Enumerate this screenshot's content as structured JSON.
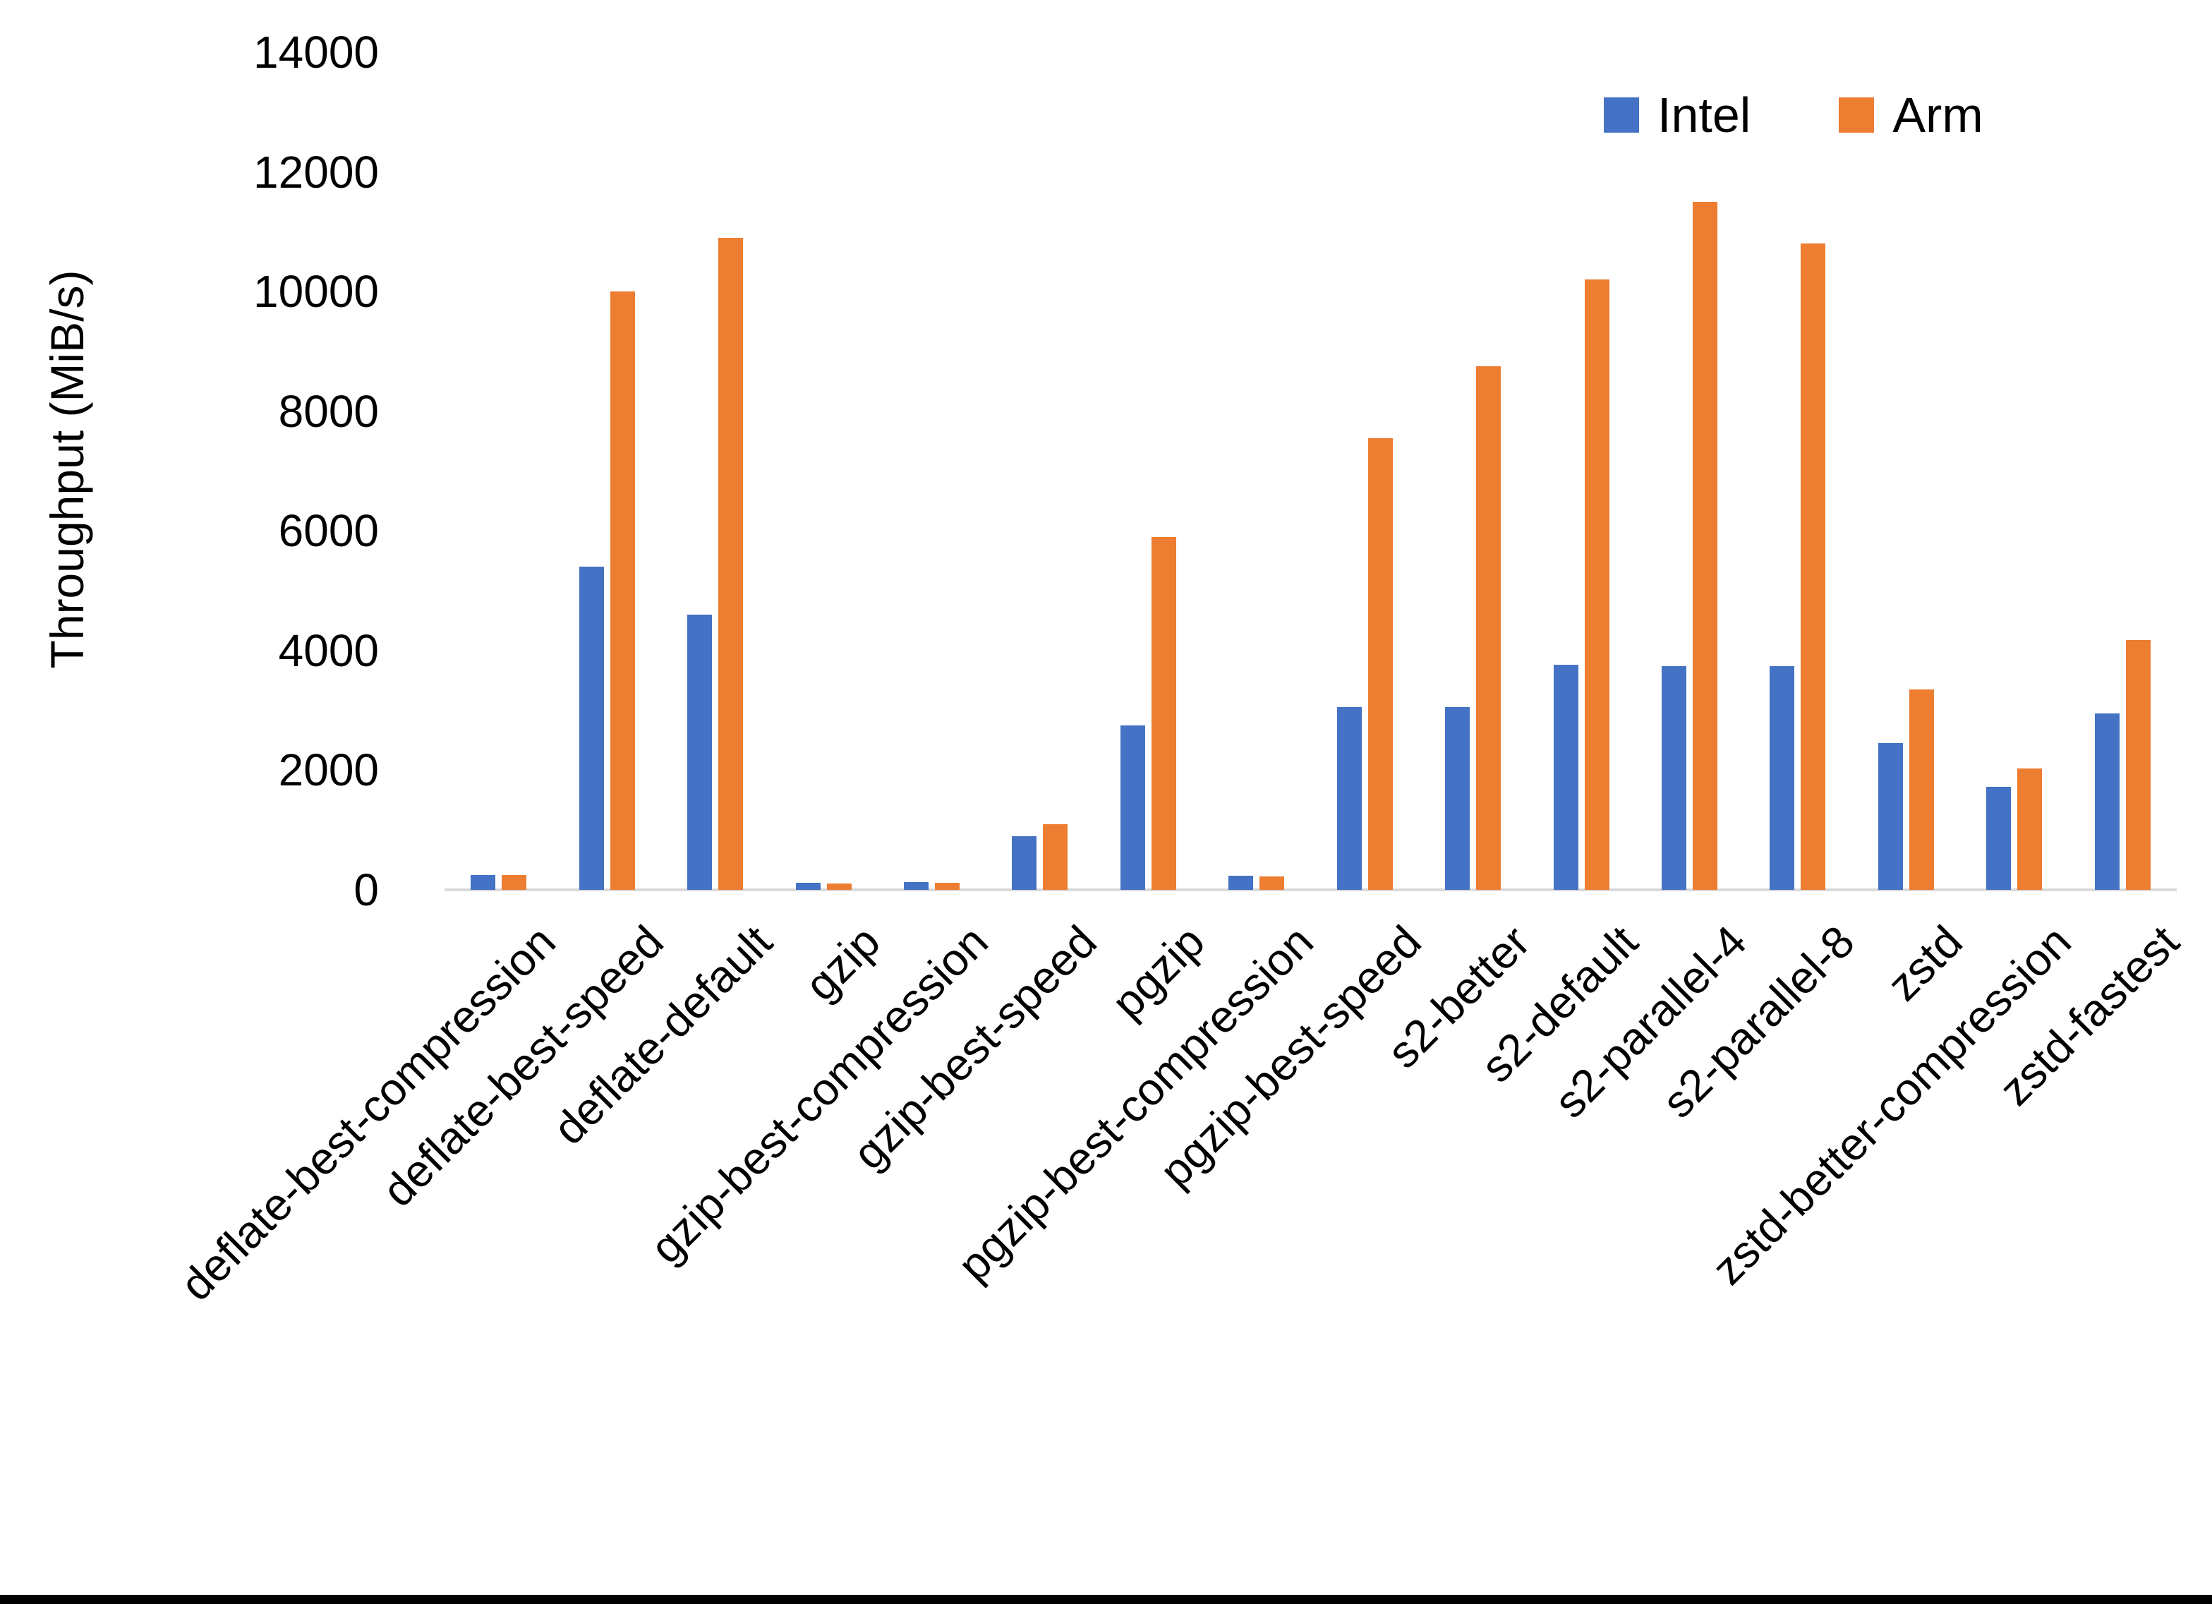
{
  "chart_data": {
    "type": "bar",
    "title": "",
    "xlabel": "",
    "ylabel": "Throughput (MiB/s)",
    "ylim": [
      0,
      14000
    ],
    "y_ticks": [
      0,
      2000,
      4000,
      6000,
      8000,
      10000,
      12000,
      14000
    ],
    "grid": false,
    "legend_position": "top-right",
    "categories": [
      "deflate-best-compression",
      "deflate-best-speed",
      "deflate-default",
      "gzip",
      "gzip-best-compression",
      "gzip-best-speed",
      "pgzip",
      "pgzip-best-compression",
      "pgzip-best-speed",
      "s2-better",
      "s2-default",
      "s2-parallel-4",
      "s2-parallel-8",
      "zstd",
      "zstd-better-compression",
      "zstd-fastest"
    ],
    "series": [
      {
        "name": "Intel",
        "color": "#4472C4",
        "values": [
          250,
          5400,
          4600,
          120,
          130,
          900,
          2750,
          240,
          3050,
          3050,
          3760,
          3740,
          3740,
          2450,
          1725,
          2950
        ]
      },
      {
        "name": "Arm",
        "color": "#ED7D31",
        "values": [
          245,
          10000,
          10900,
          105,
          118,
          1100,
          5900,
          225,
          7550,
          8750,
          10200,
          11500,
          10800,
          3350,
          2030,
          4175
        ]
      }
    ],
    "axis_line_color": "#d9d9d9",
    "text_color": "#000000"
  }
}
